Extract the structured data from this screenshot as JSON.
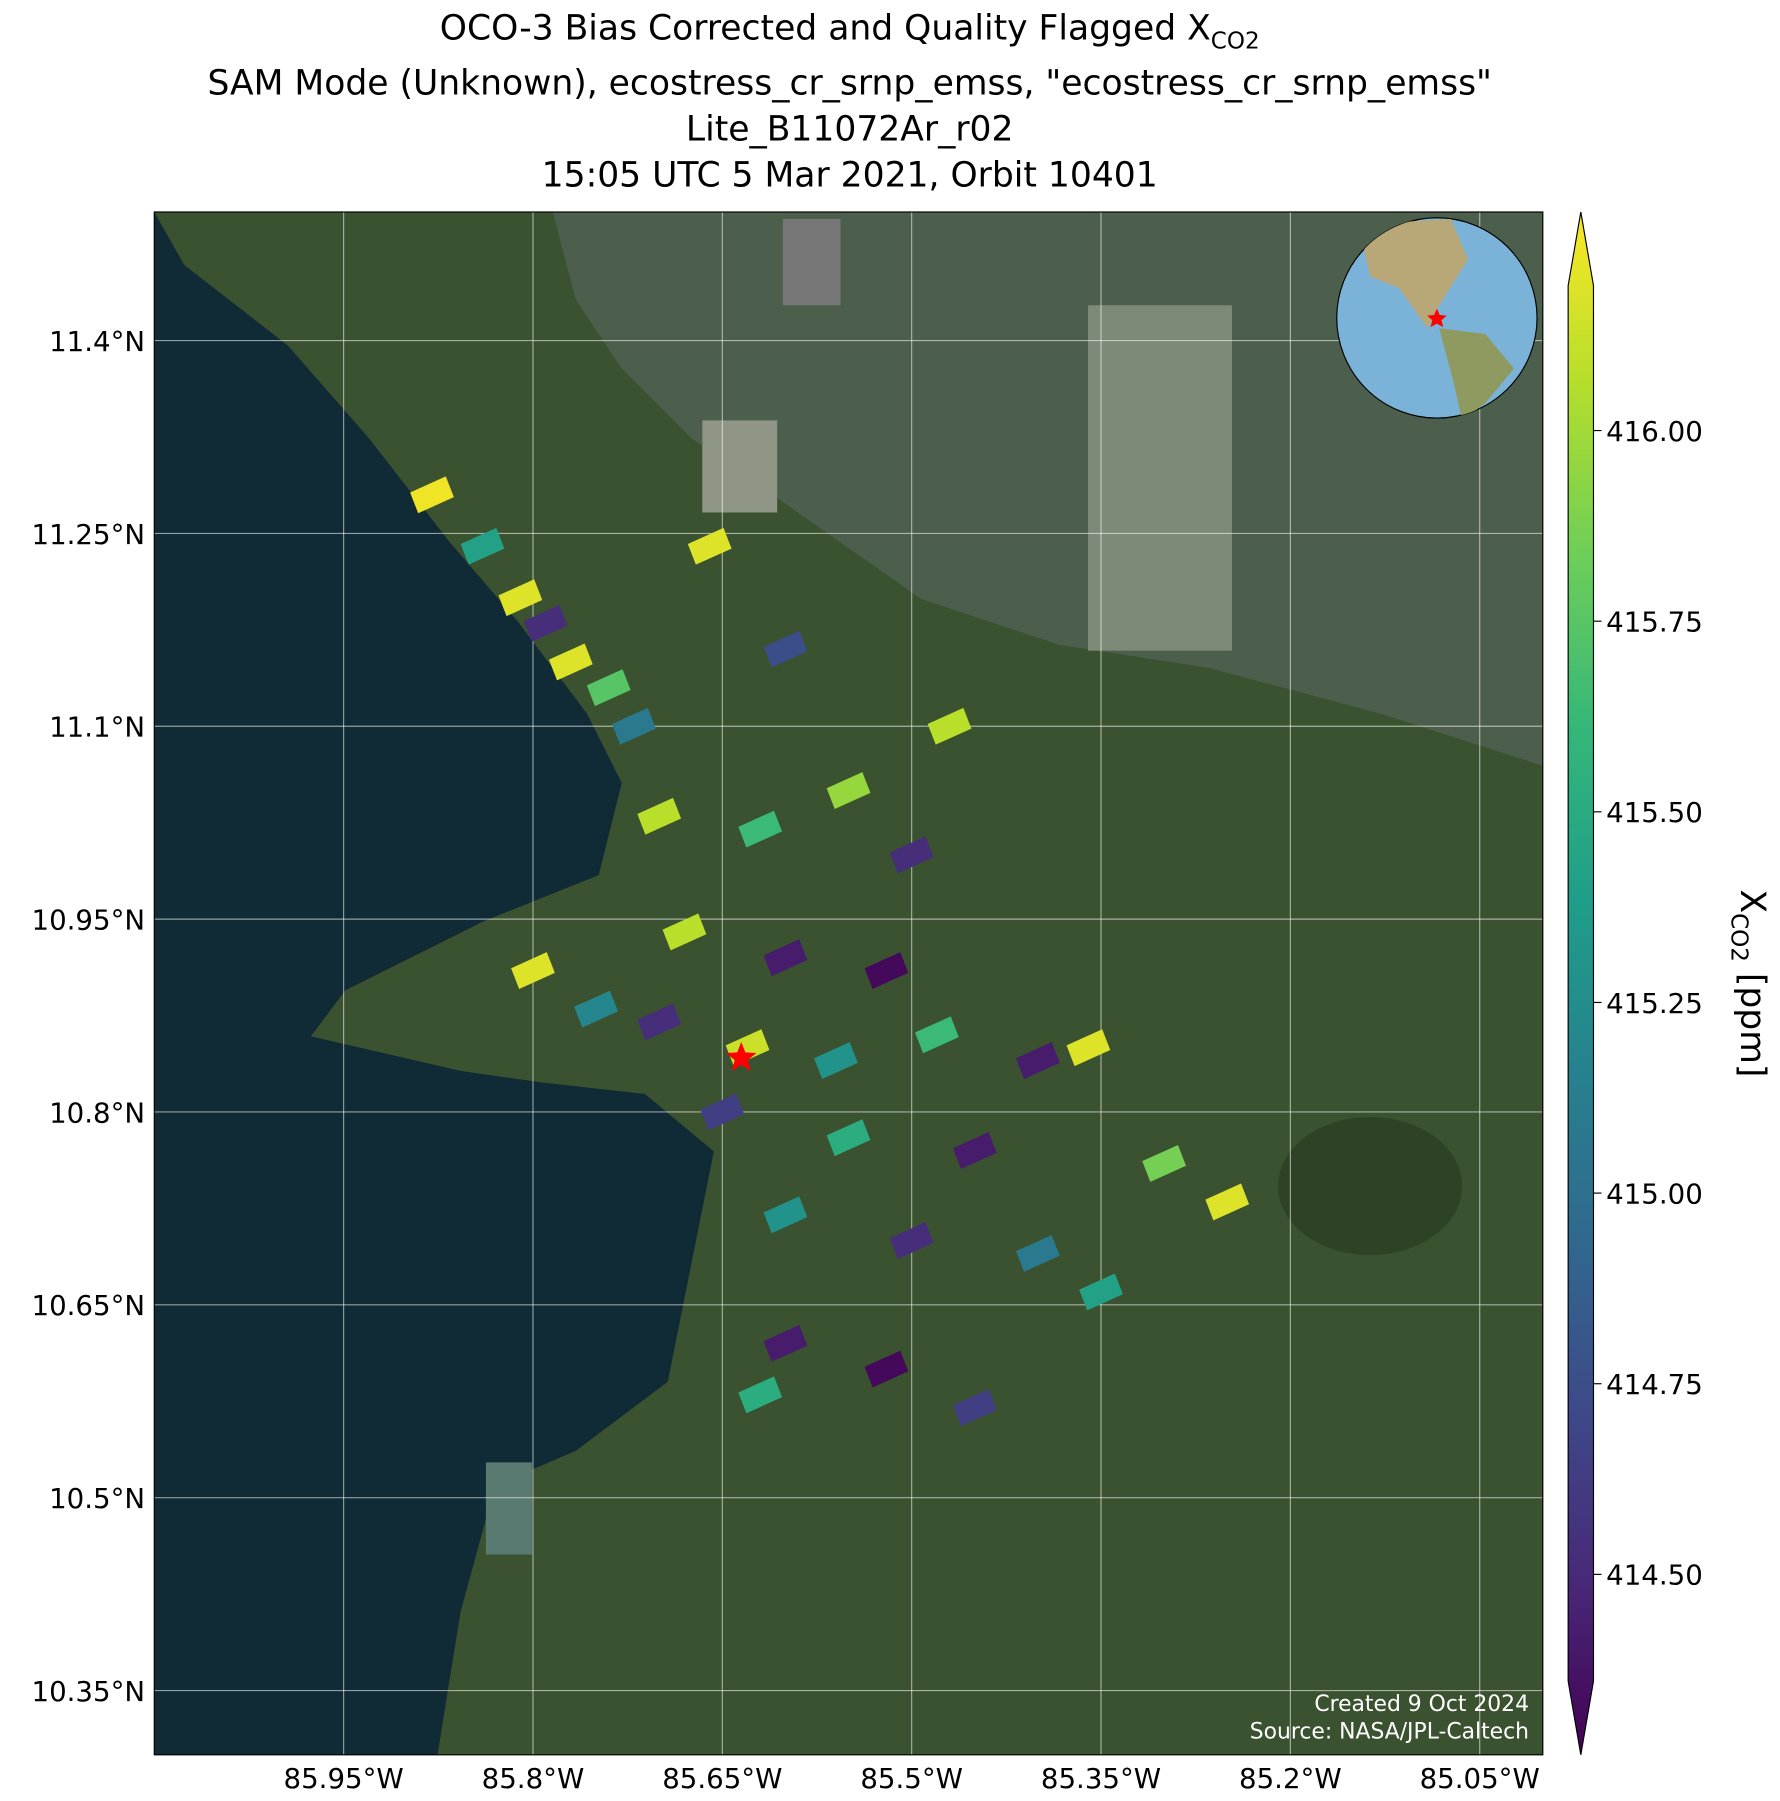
{
  "chart_data": {
    "type": "map",
    "title_lines": [
      "OCO-3 Bias Corrected and Quality Flagged X",
      "SAM Mode (Unknown), ecostress_cr_srnp_emss, \"ecostress_cr_srnp_emss\"",
      "Lite_B11072Ar_r02",
      "15:05 UTC 5 Mar 2021, Orbit 10401"
    ],
    "title_subscript": "CO2",
    "xlim": [
      -86.1,
      -85.0
    ],
    "ylim": [
      10.3,
      11.5
    ],
    "xticks": [
      {
        "value": -85.95,
        "label": "85.95°W"
      },
      {
        "value": -85.8,
        "label": "85.8°W"
      },
      {
        "value": -85.65,
        "label": "85.65°W"
      },
      {
        "value": -85.5,
        "label": "85.5°W"
      },
      {
        "value": -85.35,
        "label": "85.35°W"
      },
      {
        "value": -85.2,
        "label": "85.2°W"
      },
      {
        "value": -85.05,
        "label": "85.05°W"
      }
    ],
    "yticks": [
      {
        "value": 11.4,
        "label": "11.4°N"
      },
      {
        "value": 11.25,
        "label": "11.25°N"
      },
      {
        "value": 11.1,
        "label": "11.1°N"
      },
      {
        "value": 10.95,
        "label": "10.95°N"
      },
      {
        "value": 10.8,
        "label": "10.8°N"
      },
      {
        "value": 10.65,
        "label": "10.65°N"
      },
      {
        "value": 10.5,
        "label": "10.5°N"
      },
      {
        "value": 10.35,
        "label": "10.35°N"
      }
    ],
    "grid": true,
    "colormap": "viridis",
    "clim": [
      414.36,
      416.19
    ],
    "colorbar_ticks": [
      {
        "value": 416.0,
        "label": "416.00"
      },
      {
        "value": 415.75,
        "label": "415.75"
      },
      {
        "value": 415.5,
        "label": "415.50"
      },
      {
        "value": 415.25,
        "label": "415.25"
      },
      {
        "value": 415.0,
        "label": "415.00"
      },
      {
        "value": 414.75,
        "label": "414.75"
      },
      {
        "value": 414.5,
        "label": "414.50"
      }
    ],
    "colorbar_label": [
      "X",
      "CO2",
      " [ppm]"
    ],
    "lon": [
      -85.88,
      -85.84,
      -85.81,
      -85.79,
      -85.77,
      -85.74,
      -85.72,
      -85.66,
      -85.6,
      -85.47,
      -85.7,
      -85.62,
      -85.55,
      -85.5,
      -85.68,
      -85.6,
      -85.52,
      -85.8,
      -85.75,
      -85.7,
      -85.63,
      -85.56,
      -85.48,
      -85.4,
      -85.36,
      -85.65,
      -85.55,
      -85.45,
      -85.3,
      -85.25,
      -85.6,
      -85.5,
      -85.4,
      -85.35,
      -85.6,
      -85.52,
      -85.45,
      -85.62
    ],
    "lat": [
      11.28,
      11.24,
      11.2,
      11.18,
      11.15,
      11.13,
      11.1,
      11.24,
      11.16,
      11.1,
      11.03,
      11.02,
      11.05,
      11.0,
      10.94,
      10.92,
      10.91,
      10.91,
      10.88,
      10.87,
      10.85,
      10.84,
      10.86,
      10.84,
      10.85,
      10.8,
      10.78,
      10.77,
      10.76,
      10.73,
      10.72,
      10.7,
      10.69,
      10.66,
      10.62,
      10.6,
      10.57,
      10.58
    ],
    "xco2": [
      416.15,
      415.4,
      416.1,
      414.6,
      416.1,
      415.7,
      415.1,
      416.1,
      414.8,
      416.0,
      416.0,
      415.6,
      415.9,
      414.6,
      416.0,
      414.5,
      414.4,
      416.1,
      415.2,
      414.6,
      416.05,
      415.3,
      415.6,
      414.5,
      416.1,
      414.7,
      415.5,
      414.5,
      415.8,
      416.1,
      415.3,
      414.6,
      415.1,
      415.4,
      414.5,
      414.4,
      414.7,
      415.5
    ],
    "target": {
      "lon": -85.635,
      "lat": 10.842,
      "color": "#ff0000"
    },
    "credits": [
      "Created 9 Oct 2024",
      "Source: NASA/JPL-Caltech"
    ]
  }
}
